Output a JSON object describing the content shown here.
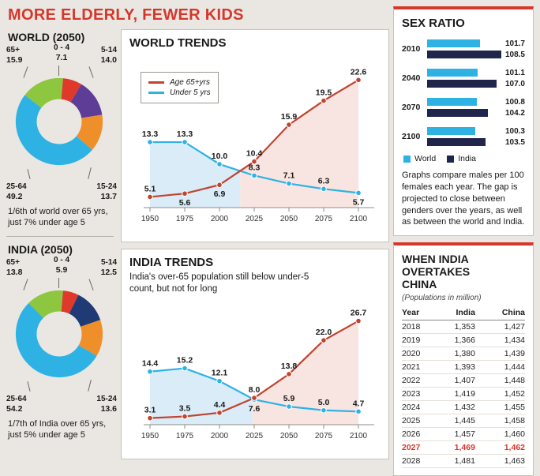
{
  "title": "MORE ELDERLY, FEWER KIDS",
  "colors": {
    "accent_red": "#d6372c",
    "cyan": "#2eb2e4",
    "line_red": "#c2432e",
    "dark_navy": "#20254c",
    "area_blue": "#daecf7",
    "area_pink": "#f8e5e2"
  },
  "world_2050": {
    "heading": "WORLD (2050)",
    "caption": "1/6th of world over 65 yrs, just 7% under age 5",
    "callouts": {
      "top_left": {
        "label": "65+",
        "value": "15.9"
      },
      "top_center": {
        "label": "0 - 4",
        "value": "7.1"
      },
      "top_right": {
        "label": "5-14",
        "value": "14.0"
      },
      "bottom_left": {
        "label": "25-64",
        "value": "49.2"
      },
      "bottom_right": {
        "label": "15-24",
        "value": "13.7"
      }
    }
  },
  "india_2050": {
    "heading": "INDIA (2050)",
    "caption": "1/7th of India over 65 yrs, just 5% under age 5",
    "callouts": {
      "top_left": {
        "label": "65+",
        "value": "13.8"
      },
      "top_center": {
        "label": "0 - 4",
        "value": "5.9"
      },
      "top_right": {
        "label": "5-14",
        "value": "12.5"
      },
      "bottom_left": {
        "label": "25-64",
        "value": "54.2"
      },
      "bottom_right": {
        "label": "15-24",
        "value": "13.6"
      }
    }
  },
  "world_trends": {
    "heading": "WORLD TRENDS",
    "legend": [
      {
        "label": "Age 65+yrs",
        "color": "#c2432e"
      },
      {
        "label": "Under 5 yrs",
        "color": "#2eb2e4"
      }
    ]
  },
  "india_trends": {
    "heading": "INDIA TRENDS",
    "subtitle": "India's over-65 population still below under-5 count, but not for long"
  },
  "sex_ratio": {
    "heading": "SEX RATIO",
    "legend": [
      {
        "label": "World",
        "color": "#2eb2e4"
      },
      {
        "label": "India",
        "color": "#20254c"
      }
    ],
    "note": "Graphs compare males per 100 females each year. The gap is projected to close between genders over the years, as well as between the world and India."
  },
  "overtake": {
    "heading": "WHEN INDIA OVERTAKES CHINA",
    "subtitle": "(Populations in million)"
  },
  "chart_data": [
    {
      "id": "world-donut",
      "type": "pie",
      "title": "WORLD (2050)",
      "unit": "% of population",
      "start_angle": 5,
      "segments": [
        {
          "label": "0 - 4",
          "value": 7.1,
          "color": "#df392c"
        },
        {
          "label": "5-14",
          "value": 14.0,
          "color": "#5e3d97"
        },
        {
          "label": "15-24",
          "value": 13.7,
          "color": "#ef8f2a"
        },
        {
          "label": "25-64",
          "value": 49.2,
          "color": "#2eb2e4"
        },
        {
          "label": "65+",
          "value": 15.9,
          "color": "#8dc63f"
        }
      ]
    },
    {
      "id": "india-donut",
      "type": "pie",
      "title": "INDIA (2050)",
      "unit": "% of population",
      "start_angle": 5,
      "segments": [
        {
          "label": "0 - 4",
          "value": 5.9,
          "color": "#df392c"
        },
        {
          "label": "5-14",
          "value": 12.5,
          "color": "#1f3a75"
        },
        {
          "label": "15-24",
          "value": 13.6,
          "color": "#ef8f2a"
        },
        {
          "label": "25-64",
          "value": 54.2,
          "color": "#2eb2e4"
        },
        {
          "label": "65+",
          "value": 13.8,
          "color": "#8dc63f"
        }
      ]
    },
    {
      "id": "world-trends",
      "type": "line",
      "title": "WORLD TRENDS",
      "x": [
        "1950",
        "1975",
        "2000",
        "2025",
        "2050",
        "2075",
        "2100"
      ],
      "ylim": [
        3.5,
        25
      ],
      "series": [
        {
          "name": "Age 65+yrs",
          "color": "#c2432e",
          "values": [
            5.1,
            5.6,
            6.9,
            10.4,
            15.9,
            19.5,
            22.6
          ],
          "label_pos": [
            "above",
            "below",
            "below",
            "above",
            "above",
            "above",
            "above"
          ]
        },
        {
          "name": "Under 5 yrs",
          "color": "#2eb2e4",
          "values": [
            13.3,
            13.3,
            10.0,
            8.3,
            7.1,
            6.3,
            5.7
          ],
          "label_pos": [
            "above",
            "above",
            "above",
            "above",
            "above",
            "above",
            "below"
          ]
        }
      ],
      "area_before_cross": "#daecf7",
      "area_after_cross": "#f8e5e2"
    },
    {
      "id": "india-trends",
      "type": "line",
      "title": "INDIA TRENDS",
      "x": [
        "1950",
        "1975",
        "2000",
        "2025",
        "2050",
        "2075",
        "2100"
      ],
      "ylim": [
        1.5,
        29.5
      ],
      "series": [
        {
          "name": "Age 65+yrs",
          "color": "#c2432e",
          "values": [
            3.1,
            3.5,
            4.4,
            8.0,
            13.8,
            22.0,
            26.7
          ],
          "label_pos": [
            "above",
            "above",
            "above",
            "above",
            "above",
            "above",
            "above"
          ]
        },
        {
          "name": "Under 5 yrs",
          "color": "#2eb2e4",
          "values": [
            14.4,
            15.2,
            12.1,
            7.6,
            5.9,
            5.0,
            4.7
          ],
          "label_pos": [
            "above",
            "above",
            "above",
            "below",
            "above",
            "above",
            "above"
          ]
        }
      ],
      "area_before_cross": "#daecf7",
      "area_after_cross": "#f8e5e2"
    },
    {
      "id": "sex-ratio",
      "type": "bar",
      "title": "SEX RATIO",
      "unit": "males per 100 females",
      "categories": [
        "2010",
        "2040",
        "2070",
        "2100"
      ],
      "series": [
        {
          "name": "World",
          "color": "#2eb2e4",
          "values": [
            101.7,
            101.1,
            100.8,
            100.3
          ]
        },
        {
          "name": "India",
          "color": "#20254c",
          "values": [
            108.5,
            107.0,
            104.2,
            103.5
          ]
        }
      ]
    },
    {
      "id": "population-table",
      "type": "table",
      "title": "WHEN INDIA OVERTAKES CHINA",
      "unit": "millions",
      "columns": [
        "Year",
        "India",
        "China"
      ],
      "rows": [
        {
          "year": "2018",
          "india": "1,353",
          "china": "1,427",
          "highlight": false
        },
        {
          "year": "2019",
          "india": "1,366",
          "china": "1,434",
          "highlight": false
        },
        {
          "year": "2020",
          "india": "1,380",
          "china": "1,439",
          "highlight": false
        },
        {
          "year": "2021",
          "india": "1,393",
          "china": "1,444",
          "highlight": false
        },
        {
          "year": "2022",
          "india": "1,407",
          "china": "1,448",
          "highlight": false
        },
        {
          "year": "2023",
          "india": "1,419",
          "china": "1,452",
          "highlight": false
        },
        {
          "year": "2024",
          "india": "1,432",
          "china": "1,455",
          "highlight": false
        },
        {
          "year": "2025",
          "india": "1,445",
          "china": "1,458",
          "highlight": false
        },
        {
          "year": "2026",
          "india": "1,457",
          "china": "1,460",
          "highlight": false
        },
        {
          "year": "2027",
          "india": "1,469",
          "china": "1,462",
          "highlight": true
        },
        {
          "year": "2028",
          "india": "1,481",
          "china": "1,463",
          "highlight": false
        }
      ]
    }
  ]
}
